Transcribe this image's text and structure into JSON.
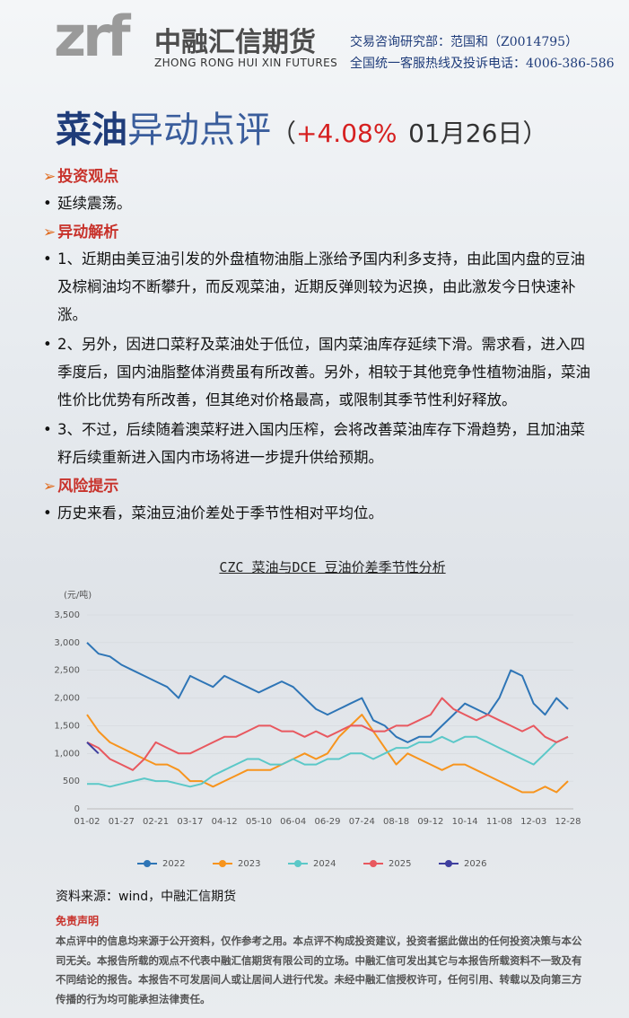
{
  "header": {
    "logo_mark": "zrf",
    "company": "中融汇信期货",
    "company_en": "ZHONG RONG HUI XIN FUTURES",
    "contact_1": "交易咨询研究部：范国和（Z0014795）",
    "contact_2": "全国统一客服热线及投诉电话：4006-386-586"
  },
  "title": {
    "main": "菜油",
    "sub": "异动点评",
    "open": "（",
    "change": "+4.08%",
    "date": "01月26日）"
  },
  "sections": [
    {
      "heading": "投资观点",
      "bullets": [
        "延续震荡。"
      ]
    },
    {
      "heading": "异动解析",
      "bullets": [
        "1、近期由美豆油引发的外盘植物油脂上涨给予国内利多支持，由此国内盘的豆油及棕榈油均不断攀升，而反观菜油，近期反弹则较为迟换，由此激发今日快速补涨。",
        "2、另外，因进口菜籽及菜油处于低位，国内菜油库存延续下滑。需求看，进入四季度后，国内油脂整体消费虽有所改善。另外，相较于其他竞争性植物油脂，菜油性价比优势有所改善，但其绝对价格最高，或限制其季节性利好释放。",
        "3、不过，后续随着澳菜籽进入国内压榨，会将改善菜油库存下滑趋势，且加油菜籽后续重新进入国内市场将进一步提升供给预期。"
      ]
    },
    {
      "heading": "风险提示",
      "bullets": [
        "历史来看，菜油豆油价差处于季节性相对平均位。"
      ]
    }
  ],
  "chart_data": {
    "type": "line",
    "title": "CZC 菜油与DCE 豆油价差季节性分析",
    "y_unit": "(元/吨)",
    "categories": [
      "01-02",
      null,
      null,
      "01-27",
      null,
      null,
      "02-21",
      null,
      null,
      "03-17",
      null,
      null,
      "04-12",
      null,
      null,
      "05-10",
      null,
      null,
      "06-04",
      null,
      null,
      "06-29",
      null,
      null,
      "07-24",
      null,
      null,
      "08-18",
      null,
      null,
      "09-12",
      null,
      null,
      "10-14",
      null,
      null,
      "11-08",
      null,
      null,
      "12-03",
      null,
      null,
      "12-28"
    ],
    "ylim": [
      0,
      3500
    ],
    "yticks": [
      0,
      500,
      {
        "value": 1000,
        "label": "1,000"
      },
      {
        "value": 1500,
        "label": "1,500"
      },
      {
        "value": 2000,
        "label": "2,000"
      },
      {
        "value": 2500,
        "label": "2,500"
      },
      {
        "value": 3000,
        "label": "3,000"
      },
      {
        "value": 3500,
        "label": "3,500"
      }
    ],
    "grid": true,
    "legend": "bottom",
    "series": [
      {
        "name": "2022",
        "color": "#2e75b6",
        "values": [
          3000,
          2800,
          2750,
          2600,
          2500,
          2400,
          2300,
          2200,
          2000,
          2400,
          2300,
          2200,
          2400,
          2300,
          2200,
          2100,
          2200,
          2300,
          2200,
          2000,
          1800,
          1700,
          1800,
          1900,
          2000,
          1600,
          1500,
          1300,
          1200,
          1300,
          1300,
          1500,
          1700,
          1900,
          1800,
          1700,
          2000,
          2500,
          2400,
          1900,
          1700,
          2000,
          1800
        ]
      },
      {
        "name": "2023",
        "color": "#f7941d",
        "values": [
          1700,
          1400,
          1200,
          1100,
          1000,
          900,
          800,
          800,
          700,
          500,
          500,
          400,
          500,
          600,
          700,
          700,
          700,
          800,
          900,
          1000,
          900,
          1000,
          1300,
          1500,
          1700,
          1400,
          1100,
          800,
          1000,
          900,
          800,
          700,
          800,
          800,
          700,
          600,
          500,
          400,
          300,
          300,
          400,
          300,
          500
        ]
      },
      {
        "name": "2024",
        "color": "#5bc8c8",
        "values": [
          450,
          450,
          400,
          450,
          500,
          550,
          500,
          500,
          450,
          400,
          450,
          600,
          700,
          800,
          900,
          900,
          800,
          800,
          900,
          800,
          800,
          900,
          900,
          1000,
          1000,
          900,
          1000,
          1100,
          1100,
          1200,
          1200,
          1300,
          1200,
          1300,
          1300,
          1200,
          1100,
          1000,
          900,
          800,
          1000,
          1200,
          1300
        ]
      },
      {
        "name": "2025",
        "color": "#e8585f",
        "values": [
          1200,
          1100,
          900,
          800,
          700,
          900,
          1200,
          1100,
          1000,
          1000,
          1100,
          1200,
          1300,
          1300,
          1400,
          1500,
          1500,
          1400,
          1400,
          1300,
          1400,
          1300,
          1400,
          1500,
          1500,
          1400,
          1400,
          1500,
          1500,
          1600,
          1700,
          2000,
          1800,
          1700,
          1600,
          1700,
          1600,
          1500,
          1400,
          1500,
          1300,
          1200,
          1300
        ]
      },
      {
        "name": "2026",
        "color": "#3f3f9f",
        "values": [
          1200,
          1000,
          null,
          null,
          null,
          null,
          null,
          null,
          null,
          null,
          null,
          null,
          null,
          null,
          null,
          null,
          null,
          null,
          null,
          null,
          null,
          null,
          null,
          null,
          null,
          null,
          null,
          null,
          null,
          null,
          null,
          null,
          null,
          null,
          null,
          null,
          null,
          null,
          null,
          null,
          null,
          null,
          null
        ]
      }
    ]
  },
  "source": "资料来源：wind，中融汇信期货",
  "disclaimer": {
    "heading": "免责声明",
    "body": "本点评中的信息均来源于公开资料，仅作参考之用。本点评不构成投资建议，投资者据此做出的任何投资决策与本公司无关。本报告所载的观点不代表中融汇信期货有限公司的立场。中融汇信可发出其它与本报告所载资料不一致及有不同结论的报告。本报告不可发居间人或让居间人进行代发。未经中融汇信授权许可，任何引用、转载以及向第三方传播的行为均可能承担法律责任。"
  }
}
